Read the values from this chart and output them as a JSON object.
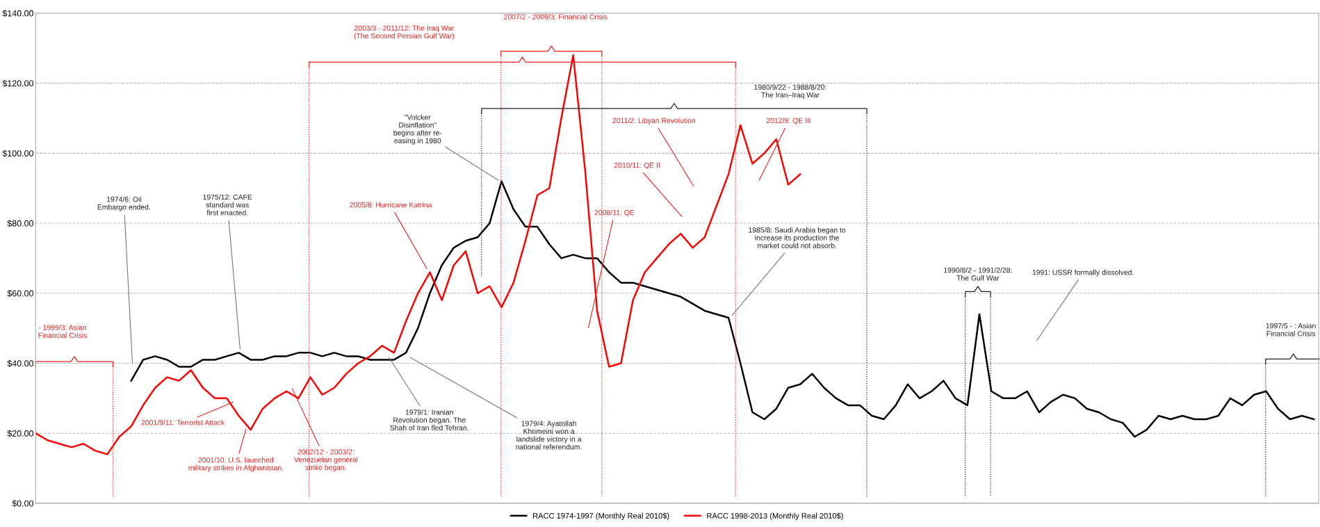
{
  "chart_data": {
    "type": "line",
    "categories": [
      null,
      null,
      null,
      null,
      null,
      null,
      null,
      null,
      null,
      null,
      null,
      null,
      null,
      null,
      null,
      null,
      null,
      null,
      null,
      null,
      null,
      null,
      null,
      null,
      null,
      null,
      null,
      null,
      null,
      null,
      null,
      null,
      null,
      null,
      null,
      null,
      null,
      null,
      null,
      null,
      null,
      null,
      null,
      null,
      null,
      null,
      null,
      null,
      null,
      null,
      null,
      null,
      null,
      null,
      null,
      null,
      null,
      null,
      null,
      null,
      null,
      null,
      null,
      null,
      null,
      null,
      null,
      null,
      null,
      null,
      null,
      null,
      null,
      null,
      null,
      null,
      null,
      null,
      null,
      null,
      null,
      null,
      null,
      null,
      null,
      null,
      null,
      null,
      null,
      null,
      null,
      null,
      null,
      null,
      null,
      null,
      null,
      null,
      null,
      null,
      null,
      null,
      null,
      null,
      null,
      null,
      null,
      null
    ],
    "series": [
      {
        "name": "RACC 1974-1997 (Monthly Real 2010$)",
        "color": "#000000",
        "values": [
          null,
          null,
          null,
          null,
          null,
          null,
          null,
          null,
          35,
          41,
          42,
          41,
          39,
          39,
          41,
          41,
          42,
          43,
          41,
          41,
          42,
          42,
          43,
          43,
          42,
          43,
          42,
          42,
          41,
          41,
          41,
          43,
          50,
          60,
          68,
          73,
          75,
          76,
          80,
          92,
          84,
          79,
          79,
          74,
          70,
          71,
          70,
          70,
          66,
          63,
          63,
          62,
          61,
          60,
          59,
          57,
          55,
          54,
          53,
          40,
          26,
          24,
          27,
          33,
          34,
          37,
          33,
          30,
          28,
          28,
          25,
          24,
          28,
          34,
          30,
          32,
          35,
          30,
          28,
          54,
          32,
          30,
          30,
          32,
          26,
          29,
          31,
          30,
          27,
          26,
          24,
          23,
          19,
          21,
          25,
          24,
          25,
          24,
          24,
          25,
          30,
          28,
          31,
          32,
          27,
          24,
          25,
          24
        ]
      },
      {
        "name": "RACC 1998-2013 (Monthly Real 2010$)",
        "color": "#ff0000",
        "values": [
          20,
          18,
          17,
          16,
          17,
          15,
          14,
          19,
          22,
          28,
          33,
          36,
          35,
          38,
          33,
          30,
          30,
          25,
          21,
          27,
          30,
          32,
          30,
          36,
          31,
          33,
          37,
          40,
          42,
          45,
          43,
          52,
          60,
          66,
          58,
          68,
          72,
          60,
          62,
          56,
          63,
          75,
          88,
          90,
          110,
          128,
          95,
          55,
          39,
          40,
          58,
          66,
          70,
          74,
          77,
          73,
          76,
          85,
          94,
          108,
          97,
          100,
          104,
          91,
          94,
          null,
          null,
          null,
          null,
          null,
          null,
          null,
          null,
          null,
          null,
          null,
          null,
          null,
          null,
          null,
          null,
          null,
          null,
          null,
          null,
          null,
          null,
          null,
          null,
          null,
          null,
          null,
          null,
          null,
          null,
          null,
          null,
          null,
          null,
          null,
          null,
          null,
          null,
          null,
          null,
          null,
          null,
          null
        ]
      }
    ],
    "ylim": [
      0,
      140
    ],
    "yticks": [
      {
        "value": 0,
        "label": "$0.00"
      },
      {
        "value": 20,
        "label": "$20.00"
      },
      {
        "value": 40,
        "label": "$40.00"
      },
      {
        "value": 60,
        "label": "$60.00"
      },
      {
        "value": 80,
        "label": "$80.00"
      },
      {
        "value": 100,
        "label": "$100.00"
      },
      {
        "value": 120,
        "label": "$120.00"
      },
      {
        "value": 140,
        "label": "$140.00"
      }
    ],
    "grid": "y",
    "legend": "bottom",
    "tick_labels": "y",
    "annotations": [
      "2003/3 - 2011/12: The Iraq War\n(The Second Persian Gulf War)",
      "2007/2 - 2009/3: Financial Crisis",
      "1980/9/22 - 1988/8/20:\nThe Iran–Iraq War",
      "\"Volcker\nDisinflation\"\nbegins after re-\neasing in 1980",
      "1974/6: Oil\nEmbargo ended.",
      "1975/12: CAFE\nstandard was\nfirst enacted.",
      "2005/8: Hurricane Katrina",
      "2011/2: Libyan Revolution",
      "2012/9: QE III",
      "2010/11: QE II",
      "2008/11: QE",
      "1985/8: Saudi Arabia began to\nincrease its production the\nmarket could not absorb.",
      "1990/8/2 - 1991/2/28:\nThe Gulf War",
      "1991: USSR formally dissolved.",
      "- 1999/3: Asian\nFinancial Crisis",
      "1997/5 - : Asian\nFinancial Crisis",
      "2001/9/11: Terrorist Attack",
      "2001/10: U.S. launched\nmilitary strikes in Afghanistan.",
      "2002/12 - 2003/2:\nVenezuelan general\nstrike began.",
      "1979/1: Iranian\nRevolution began. The\nShah of Iran fled Tehran.",
      "1979/4: Ayatollah\nKhomeini won a\nlandslide victory in a\nnational referendum."
    ]
  }
}
